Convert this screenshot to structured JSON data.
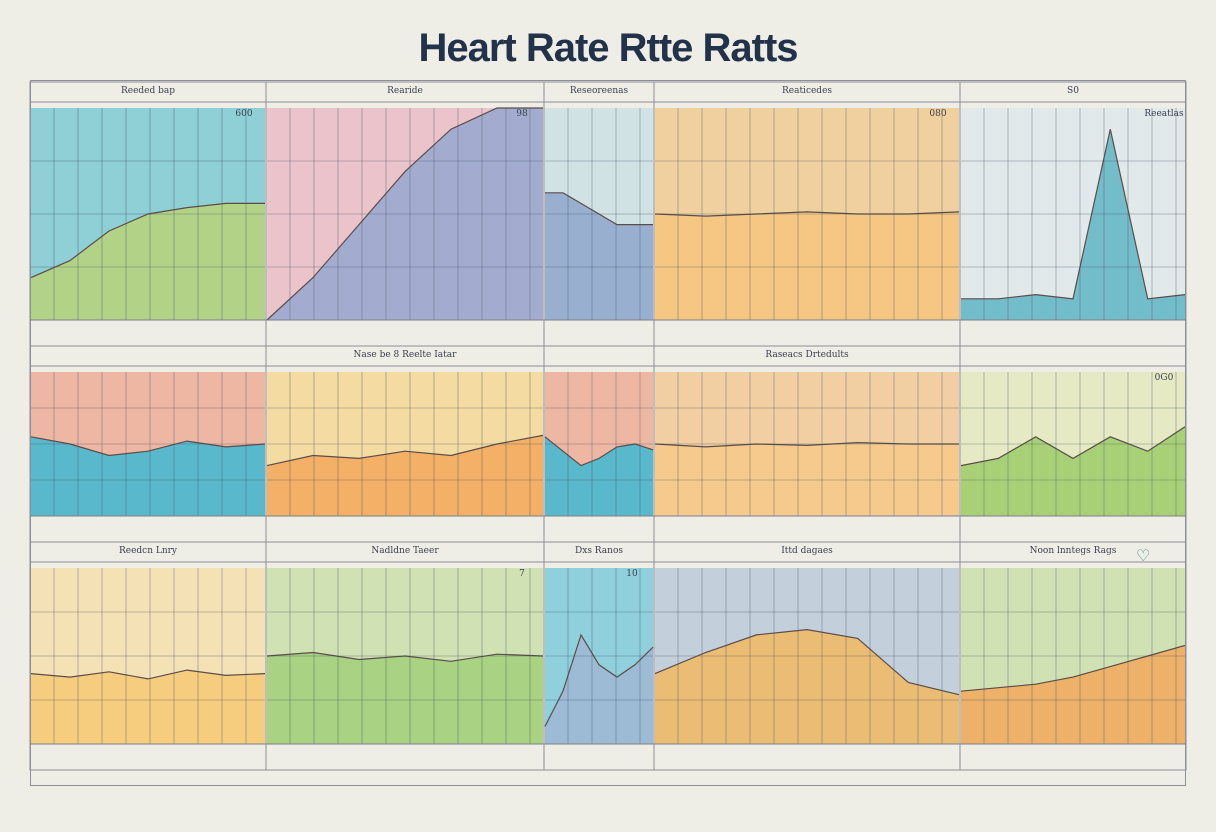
{
  "title": "Heart Rate Rtte Ratts",
  "chart_data": {
    "type": "area",
    "grid": true,
    "legend": "none",
    "panels": [
      {
        "label": "Reeded bap",
        "corner": "600",
        "fills": [
          "#3fb6c8",
          "#b9d27a"
        ],
        "trace": [
          0.2,
          0.28,
          0.42,
          0.5,
          0.53,
          0.55,
          0.55
        ]
      },
      {
        "label": "Rearide",
        "corner": "98",
        "fills": [
          "#e8a0b4",
          "#97a8cf"
        ],
        "trace": [
          0.0,
          0.2,
          0.45,
          0.7,
          0.9,
          1.0,
          1.0
        ]
      },
      {
        "label": "Reseoreenas",
        "corner": "",
        "fills": [
          "#b8d8e2",
          "#8fa6cd"
        ],
        "trace": [
          0.6,
          0.6,
          0.55,
          0.5,
          0.45,
          0.45,
          0.45
        ]
      },
      {
        "label": "Reaticedes",
        "corner": "080",
        "fills": [
          "#f3b866",
          "#f6c67e"
        ],
        "trace": [
          0.5,
          0.49,
          0.5,
          0.51,
          0.5,
          0.5,
          0.51
        ]
      },
      {
        "label": "S0",
        "corner": "Reeatlas",
        "fills": [
          "#d5e6ec",
          "#5fb4c4"
        ],
        "trace": [
          0.1,
          0.1,
          0.12,
          0.1,
          0.9,
          0.1,
          0.12
        ]
      },
      {
        "label": "",
        "corner": "",
        "fills": [
          "#ec8b6e",
          "#3fb8d4"
        ],
        "trace": [
          0.55,
          0.5,
          0.42,
          0.45,
          0.52,
          0.48,
          0.5
        ]
      },
      {
        "label": "Nase be 8 Reelte Iatar",
        "corner": "",
        "fills": [
          "#f7cc6a",
          "#f2a85c"
        ],
        "trace": [
          0.35,
          0.42,
          0.4,
          0.45,
          0.42,
          0.5,
          0.56
        ]
      },
      {
        "label": "",
        "corner": "",
        "fills": [
          "#ec8b6e",
          "#3fb8d4"
        ],
        "trace": [
          0.55,
          0.45,
          0.35,
          0.4,
          0.48,
          0.5,
          0.46
        ]
      },
      {
        "label": "Raseacs Drtedults",
        "corner": "",
        "fills": [
          "#f4b76a",
          "#f7c888"
        ],
        "trace": [
          0.5,
          0.48,
          0.5,
          0.49,
          0.51,
          0.5,
          0.5
        ]
      },
      {
        "label": "",
        "corner": "0G0",
        "fills": [
          "#dfe7a8",
          "#9ccc6a"
        ],
        "trace": [
          0.35,
          0.4,
          0.55,
          0.4,
          0.55,
          0.45,
          0.62
        ]
      },
      {
        "label": "Reedcn Lnry",
        "corner": "",
        "fills": [
          "#f8d78e",
          "#f6c874"
        ],
        "trace": [
          0.4,
          0.38,
          0.41,
          0.37,
          0.42,
          0.39,
          0.4
        ]
      },
      {
        "label": "Nadldne Taeer",
        "corner": "7",
        "fills": [
          "#b7d78a",
          "#a3cf7a"
        ],
        "trace": [
          0.5,
          0.52,
          0.48,
          0.5,
          0.47,
          0.51,
          0.5
        ]
      },
      {
        "label": "Dxs Ranos",
        "corner": "10",
        "fills": [
          "#3fb8d4",
          "#a0b7d4"
        ],
        "trace": [
          0.1,
          0.3,
          0.62,
          0.45,
          0.38,
          0.45,
          0.55
        ]
      },
      {
        "label": "Ittd dagaes",
        "corner": "",
        "fills": [
          "#a0b7d4",
          "#f2b861"
        ],
        "trace": [
          0.4,
          0.52,
          0.62,
          0.65,
          0.6,
          0.35,
          0.28
        ]
      },
      {
        "label": "Noon lnntegs Rags",
        "corner": "",
        "fills": [
          "#b7d78a",
          "#f2a85c"
        ],
        "trace": [
          0.3,
          0.32,
          0.34,
          0.38,
          0.44,
          0.5,
          0.56
        ]
      }
    ]
  }
}
